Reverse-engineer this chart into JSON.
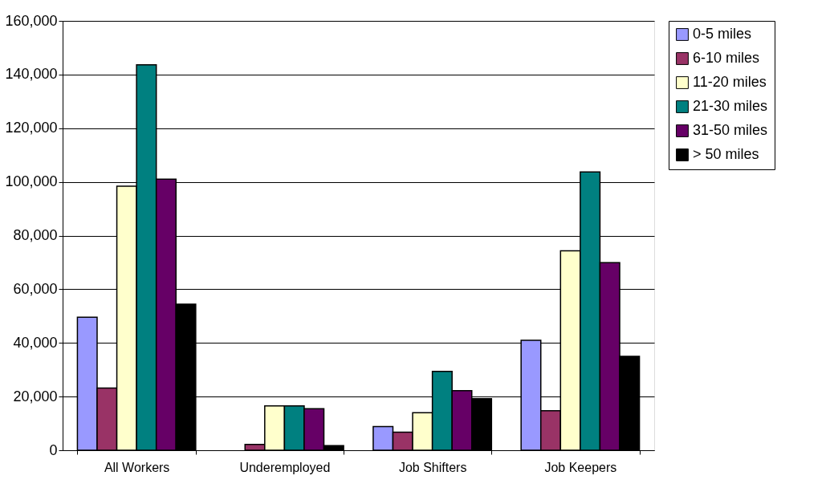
{
  "chart_data": {
    "type": "bar",
    "categories": [
      "All Workers",
      "Underemployed",
      "Job Shifters",
      "Job Keepers"
    ],
    "series": [
      {
        "name": "0-5 miles",
        "color": "#9999ff",
        "values": [
          49600,
          null,
          8800,
          41000
        ]
      },
      {
        "name": "6-10 miles",
        "color": "#993366",
        "values": [
          23200,
          2200,
          6700,
          14700
        ]
      },
      {
        "name": "11-20 miles",
        "color": "#ffffcc",
        "values": [
          98400,
          16500,
          14000,
          74300
        ]
      },
      {
        "name": "21-30 miles",
        "color": "#008080",
        "values": [
          143600,
          16500,
          29400,
          103700
        ]
      },
      {
        "name": "31-50 miles",
        "color": "#660066",
        "values": [
          101000,
          15500,
          22200,
          69900
        ]
      },
      {
        "name": "> 50 miles",
        "color": "#000000",
        "values": [
          54400,
          1700,
          19200,
          35000
        ]
      }
    ],
    "ylim": [
      0,
      160000
    ],
    "yticks": [
      0,
      {
        "value": 20000,
        "label": "20,000"
      },
      {
        "value": 40000,
        "label": "40,000"
      },
      {
        "value": 60000,
        "label": "60,000"
      },
      {
        "value": 80000,
        "label": "80,000"
      },
      {
        "value": 100000,
        "label": "100,000"
      },
      {
        "value": 120000,
        "label": "120,000"
      },
      {
        "value": 140000,
        "label": "140,000"
      },
      {
        "value": 160000,
        "label": "160,000"
      }
    ],
    "grid": "y",
    "legend": "right"
  }
}
